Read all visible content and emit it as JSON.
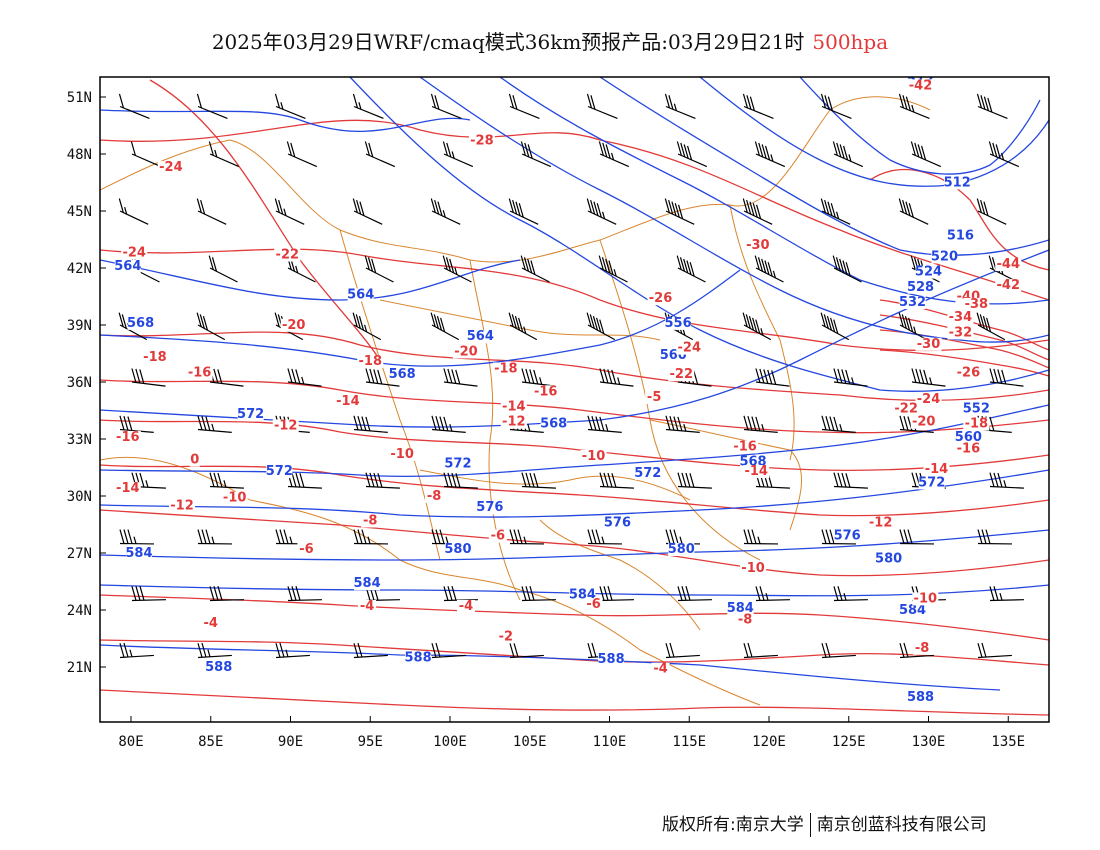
{
  "title": {
    "main": "2025年03月29日WRF/cmaq模式36km预报产品:03月29日21时",
    "level": "500hpa"
  },
  "axes": {
    "lat_labels": [
      "51N",
      "48N",
      "45N",
      "42N",
      "39N",
      "36N",
      "33N",
      "30N",
      "27N",
      "24N",
      "21N"
    ],
    "lon_labels": [
      "80E",
      "85E",
      "90E",
      "95E",
      "100E",
      "105E",
      "110E",
      "115E",
      "120E",
      "125E",
      "130E",
      "135E"
    ]
  },
  "footer": {
    "left": "版权所有:南京大学",
    "right": "南京创蓝科技有限公司"
  },
  "colors": {
    "height_contour": "#2447e0",
    "temperature_contour": "#e23a3a",
    "border": "#d9862e",
    "barb": "#000000"
  },
  "height_labels": [
    "512",
    "516",
    "520",
    "524",
    "528",
    "532",
    "556",
    "560",
    "564",
    "568",
    "572",
    "576",
    "580",
    "584",
    "588"
  ],
  "temperature_labels": [
    "-42",
    "-40",
    "-38",
    "-32",
    "-30",
    "-28",
    "-26",
    "-24",
    "-22",
    "-20",
    "-18",
    "-16",
    "-14",
    "-12",
    "-10",
    "-8",
    "-6",
    "-4",
    "-2"
  ],
  "contour_text": {
    "blue": [
      {
        "t": "512",
        "lon": 129.5,
        "lat": 51.7
      },
      {
        "t": "512",
        "lon": 131.8,
        "lat": 46.3
      },
      {
        "t": "516",
        "lon": 132.0,
        "lat": 43.5
      },
      {
        "t": "520",
        "lon": 131.0,
        "lat": 42.4
      },
      {
        "t": "524",
        "lon": 130.0,
        "lat": 41.6
      },
      {
        "t": "528",
        "lon": 129.5,
        "lat": 40.8
      },
      {
        "t": "532",
        "lon": 129.0,
        "lat": 40.0
      },
      {
        "t": "564",
        "lon": 79.8,
        "lat": 41.9
      },
      {
        "t": "564",
        "lon": 94.4,
        "lat": 40.4
      },
      {
        "t": "568",
        "lon": 80.6,
        "lat": 38.9
      },
      {
        "t": "564",
        "lon": 101.9,
        "lat": 38.2
      },
      {
        "t": "556",
        "lon": 114.3,
        "lat": 38.9
      },
      {
        "t": "560",
        "lon": 114.0,
        "lat": 37.2
      },
      {
        "t": "568",
        "lon": 97.0,
        "lat": 36.2
      },
      {
        "t": "572",
        "lon": 87.5,
        "lat": 34.1
      },
      {
        "t": "568",
        "lon": 106.5,
        "lat": 33.6
      },
      {
        "t": "572",
        "lon": 100.5,
        "lat": 31.5
      },
      {
        "t": "572",
        "lon": 89.3,
        "lat": 31.1
      },
      {
        "t": "576",
        "lon": 102.5,
        "lat": 29.2
      },
      {
        "t": "576",
        "lon": 110.5,
        "lat": 28.4
      },
      {
        "t": "572",
        "lon": 112.4,
        "lat": 31.0
      },
      {
        "t": "568",
        "lon": 119.0,
        "lat": 31.6
      },
      {
        "t": "580",
        "lon": 114.5,
        "lat": 27.0
      },
      {
        "t": "576",
        "lon": 124.9,
        "lat": 27.7
      },
      {
        "t": "580",
        "lon": 127.5,
        "lat": 26.5
      },
      {
        "t": "584",
        "lon": 80.5,
        "lat": 26.8
      },
      {
        "t": "584",
        "lon": 94.8,
        "lat": 25.2
      },
      {
        "t": "580",
        "lon": 100.5,
        "lat": 27.0
      },
      {
        "t": "584",
        "lon": 108.3,
        "lat": 24.6
      },
      {
        "t": "584",
        "lon": 118.2,
        "lat": 23.9
      },
      {
        "t": "584",
        "lon": 129.0,
        "lat": 23.8
      },
      {
        "t": "588",
        "lon": 85.5,
        "lat": 20.8
      },
      {
        "t": "588",
        "lon": 98.0,
        "lat": 21.3
      },
      {
        "t": "588",
        "lon": 110.1,
        "lat": 21.2
      },
      {
        "t": "588",
        "lon": 129.5,
        "lat": 19.2
      },
      {
        "t": "572",
        "lon": 130.2,
        "lat": 30.5
      },
      {
        "t": "560",
        "lon": 132.5,
        "lat": 32.9
      },
      {
        "t": "552",
        "lon": 133.0,
        "lat": 34.4
      }
    ],
    "red": [
      {
        "t": "-42",
        "lon": 129.5,
        "lat": 51.4
      },
      {
        "t": "-28",
        "lon": 102.0,
        "lat": 48.5
      },
      {
        "t": "-24",
        "lon": 82.5,
        "lat": 47.1
      },
      {
        "t": "-30",
        "lon": 119.3,
        "lat": 43.0
      },
      {
        "t": "-24",
        "lon": 80.2,
        "lat": 42.6
      },
      {
        "t": "-22",
        "lon": 89.8,
        "lat": 42.5
      },
      {
        "t": "-44",
        "lon": 135.0,
        "lat": 42.0
      },
      {
        "t": "-42",
        "lon": 135.0,
        "lat": 40.9
      },
      {
        "t": "-40",
        "lon": 132.5,
        "lat": 40.3
      },
      {
        "t": "-38",
        "lon": 133.0,
        "lat": 39.9
      },
      {
        "t": "-34",
        "lon": 132.0,
        "lat": 39.2
      },
      {
        "t": "-32",
        "lon": 132.0,
        "lat": 38.4
      },
      {
        "t": "-30",
        "lon": 130.0,
        "lat": 37.8
      },
      {
        "t": "-26",
        "lon": 113.2,
        "lat": 40.2
      },
      {
        "t": "-24",
        "lon": 115.0,
        "lat": 37.6
      },
      {
        "t": "-20",
        "lon": 90.2,
        "lat": 38.8
      },
      {
        "t": "-20",
        "lon": 101.0,
        "lat": 37.4
      },
      {
        "t": "-18",
        "lon": 81.5,
        "lat": 37.1
      },
      {
        "t": "-18",
        "lon": 95.0,
        "lat": 36.9
      },
      {
        "t": "-18",
        "lon": 103.5,
        "lat": 36.5
      },
      {
        "t": "-16",
        "lon": 84.3,
        "lat": 36.3
      },
      {
        "t": "-16",
        "lon": 106.0,
        "lat": 35.3
      },
      {
        "t": "-22",
        "lon": 114.5,
        "lat": 36.2
      },
      {
        "t": "-26",
        "lon": 132.5,
        "lat": 36.3
      },
      {
        "t": "-24",
        "lon": 130.0,
        "lat": 34.9
      },
      {
        "t": "-22",
        "lon": 128.6,
        "lat": 34.4
      },
      {
        "t": "-20",
        "lon": 129.7,
        "lat": 33.7
      },
      {
        "t": "-18",
        "lon": 133.0,
        "lat": 33.6
      },
      {
        "t": "-16",
        "lon": 132.5,
        "lat": 32.3
      },
      {
        "t": "-14",
        "lon": 93.6,
        "lat": 34.8
      },
      {
        "t": "-14",
        "lon": 104.0,
        "lat": 34.5
      },
      {
        "t": "-5",
        "lon": 112.8,
        "lat": 35.0
      },
      {
        "t": "-12",
        "lon": 89.7,
        "lat": 33.5
      },
      {
        "t": "-12",
        "lon": 104.0,
        "lat": 33.7
      },
      {
        "t": "-16",
        "lon": 118.5,
        "lat": 32.4
      },
      {
        "t": "-16",
        "lon": 79.8,
        "lat": 32.9
      },
      {
        "t": "-10",
        "lon": 97.0,
        "lat": 32.0
      },
      {
        "t": "-10",
        "lon": 109.0,
        "lat": 31.9
      },
      {
        "t": "-14",
        "lon": 119.2,
        "lat": 31.1
      },
      {
        "t": "-14",
        "lon": 130.5,
        "lat": 31.2
      },
      {
        "t": "-14",
        "lon": 79.8,
        "lat": 30.2
      },
      {
        "t": "-12",
        "lon": 83.2,
        "lat": 29.3
      },
      {
        "t": "-10",
        "lon": 86.5,
        "lat": 29.7
      },
      {
        "t": "0",
        "lon": 84.0,
        "lat": 31.7
      },
      {
        "t": "-8",
        "lon": 99.0,
        "lat": 29.8
      },
      {
        "t": "-8",
        "lon": 95.0,
        "lat": 28.5
      },
      {
        "t": "-12",
        "lon": 127.0,
        "lat": 28.4
      },
      {
        "t": "-6",
        "lon": 103.0,
        "lat": 27.7
      },
      {
        "t": "-6",
        "lon": 91.0,
        "lat": 27.0
      },
      {
        "t": "-10",
        "lon": 119.0,
        "lat": 26.0
      },
      {
        "t": "-4",
        "lon": 94.8,
        "lat": 24.0
      },
      {
        "t": "-4",
        "lon": 101.0,
        "lat": 24.0
      },
      {
        "t": "-6",
        "lon": 109.0,
        "lat": 24.1
      },
      {
        "t": "-8",
        "lon": 118.5,
        "lat": 23.3
      },
      {
        "t": "-10",
        "lon": 129.8,
        "lat": 24.4
      },
      {
        "t": "-4",
        "lon": 85.0,
        "lat": 23.1
      },
      {
        "t": "-2",
        "lon": 103.5,
        "lat": 22.4
      },
      {
        "t": "-8",
        "lon": 129.6,
        "lat": 21.8
      },
      {
        "t": "-4",
        "lon": 113.2,
        "lat": 20.7
      }
    ]
  },
  "wind_barbs": {
    "rows_lat": [
      50.5,
      48.0,
      45.0,
      42.0,
      39.0,
      36.0,
      33.5,
      30.5,
      27.5,
      24.5,
      21.5
    ],
    "speeds_by_row": [
      [
        10,
        10,
        15,
        15,
        20,
        20,
        20,
        25,
        30,
        30,
        35,
        40
      ],
      [
        10,
        15,
        20,
        20,
        25,
        30,
        35,
        40,
        45,
        45,
        40,
        35
      ],
      [
        15,
        20,
        25,
        30,
        35,
        40,
        45,
        50,
        50,
        45,
        40,
        30
      ],
      [
        20,
        20,
        25,
        30,
        35,
        40,
        45,
        50,
        55,
        50,
        45,
        35
      ],
      [
        25,
        30,
        30,
        35,
        40,
        45,
        50,
        55,
        55,
        50,
        45,
        40
      ],
      [
        30,
        30,
        35,
        40,
        40,
        45,
        45,
        50,
        50,
        45,
        45,
        40
      ],
      [
        30,
        35,
        40,
        40,
        45,
        45,
        45,
        45,
        45,
        45,
        40,
        40
      ],
      [
        35,
        35,
        40,
        40,
        40,
        40,
        40,
        40,
        40,
        40,
        35,
        35
      ],
      [
        35,
        35,
        35,
        35,
        35,
        35,
        35,
        35,
        35,
        30,
        30,
        30
      ],
      [
        30,
        30,
        30,
        30,
        30,
        30,
        30,
        30,
        25,
        25,
        25,
        25
      ],
      [
        25,
        25,
        25,
        20,
        20,
        20,
        20,
        20,
        20,
        20,
        20,
        20
      ]
    ]
  }
}
